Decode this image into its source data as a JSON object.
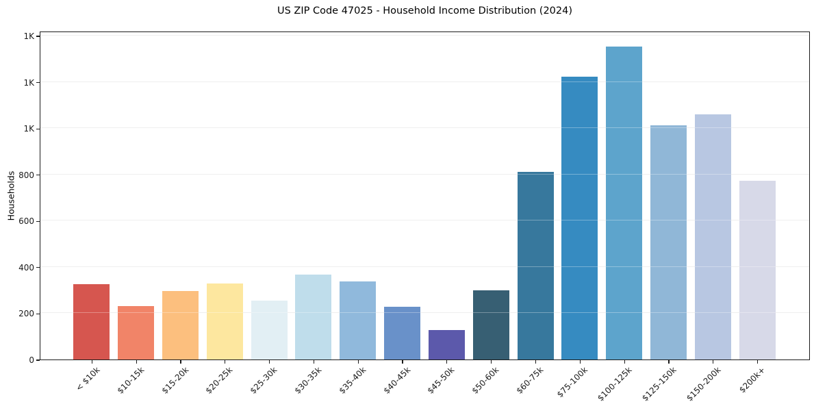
{
  "chart_data": {
    "type": "bar",
    "title": "US ZIP Code 47025 - Household Income Distribution (2024)",
    "xlabel": "",
    "ylabel": "Households",
    "categories": [
      "< $10k",
      "$10-15k",
      "$15-20k",
      "$20-25k",
      "$25-30k",
      "$30-35k",
      "$35-40k",
      "$40-45k",
      "$45-50k",
      "$50-60k",
      "$60-75k",
      "$75-100k",
      "$100-125k",
      "$125-150k",
      "$150-200k",
      "$200k+"
    ],
    "values": [
      325,
      232,
      295,
      330,
      255,
      366,
      337,
      228,
      127,
      300,
      812,
      1224,
      1353,
      1013,
      1060,
      773
    ],
    "bar_colors": [
      "#d6564f",
      "#f18468",
      "#fcbf7e",
      "#fde79f",
      "#e2eff4",
      "#bfddeb",
      "#90b9dc",
      "#6991c9",
      "#5c59ab",
      "#375f73",
      "#37789d",
      "#368bc1",
      "#5da4cc",
      "#90b7d7",
      "#b8c7e2",
      "#d7d9e8"
    ],
    "ylim": [
      0,
      1421
    ],
    "yticks": [
      0,
      200,
      400,
      600,
      800,
      1000,
      1200,
      1400
    ],
    "ytick_labels": [
      "0",
      "200",
      "400",
      "600",
      "800",
      "1K",
      "1K",
      "1K"
    ],
    "grid": "horizontal",
    "gridline_color": "#e7e7e7",
    "x_tick_rotation_deg": 45,
    "legend": "none",
    "frame_color": "#1b1b1b",
    "background": "#ffffff"
  }
}
